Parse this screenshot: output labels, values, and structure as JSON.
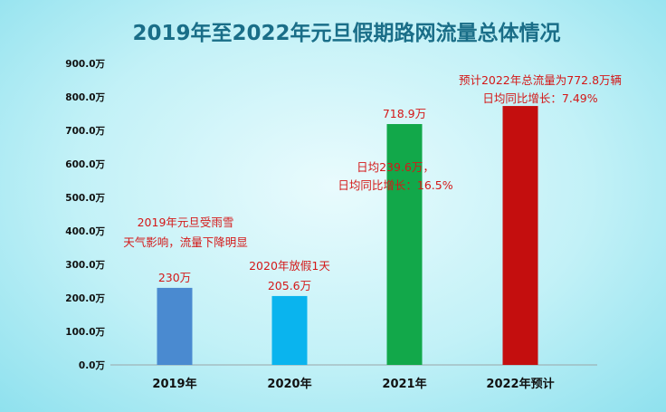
{
  "chart_data": {
    "type": "bar",
    "title": "2019年至2022年元旦假期路网流量总体情况",
    "categories": [
      "2019年",
      "2020年",
      "2021年",
      "2022年预计"
    ],
    "values": [
      230,
      205.6,
      718.9,
      772.8
    ],
    "unit": "万",
    "ylim": [
      0,
      900
    ],
    "yticks": [
      "0.0万",
      "100.0万",
      "200.0万",
      "300.0万",
      "400.0万",
      "500.0万",
      "600.0万",
      "700.0万",
      "800.0万",
      "900.0万"
    ],
    "data_labels": [
      "230万",
      "205.6万",
      "718.9万",
      ""
    ],
    "bar_colors": [
      "#4a8ad0",
      "#0ab4ee",
      "#12a84a",
      "#c40e0e"
    ],
    "grid": false,
    "legend": "none",
    "annotations": [
      {
        "lines": [
          "2019年元旦受雨雪",
          "天气影响，流量下降明显"
        ]
      },
      {
        "lines": [
          "2020年放假1天"
        ]
      },
      {
        "lines": [
          "日均239.6万，",
          "日均同比增长：16.5%"
        ]
      },
      {
        "lines": [
          "预计2022年总流量为772.8万辆",
          "日均同比增长：7.49%"
        ]
      }
    ]
  }
}
